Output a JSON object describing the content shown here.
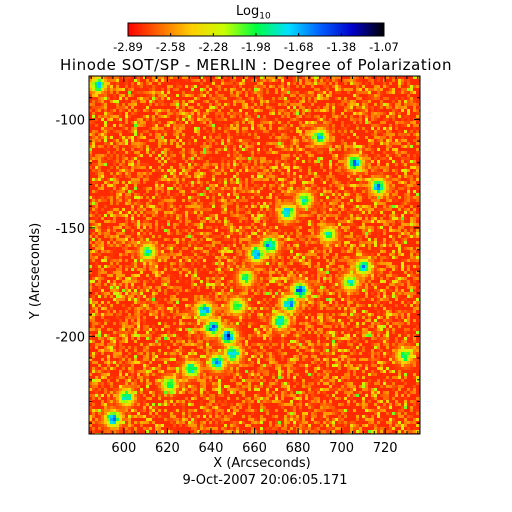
{
  "chart_data": {
    "type": "heatmap",
    "title": "Hinode SOT/SP - MERLIN : Degree of Polarization",
    "xlabel": "X (Arcseconds)",
    "ylabel": "Y (Arcseconds)",
    "timestamp": "9-Oct-2007 20:06:05.171",
    "xlim": [
      584,
      736
    ],
    "ylim": [
      -245,
      -80
    ],
    "x_ticks": [
      600,
      620,
      640,
      660,
      680,
      700,
      720
    ],
    "x_tick_labels": [
      "600",
      "620",
      "640",
      "660",
      "680",
      "700",
      "720"
    ],
    "y_ticks": [
      -100,
      -150,
      -200
    ],
    "y_tick_labels": [
      "-100",
      "-150",
      "-200"
    ],
    "colorbar": {
      "label": "Log10",
      "label_base": "Log",
      "label_sub": "10",
      "range": [
        -2.89,
        -1.07
      ],
      "tick_labels": [
        "-2.89",
        "-2.58",
        "-2.28",
        "-1.98",
        "-1.68",
        "-1.38",
        "-1.07"
      ],
      "colors": [
        "#ff0000",
        "#ff6a00",
        "#ffd000",
        "#c8ff00",
        "#00ff40",
        "#00e0ff",
        "#0060ff",
        "#0000cc",
        "#000000"
      ]
    },
    "background_level": -2.8,
    "features": [
      {
        "x": 637,
        "y": -188,
        "peak": -1.45
      },
      {
        "x": 641,
        "y": -196,
        "peak": -1.4
      },
      {
        "x": 648,
        "y": -200,
        "peak": -1.35
      },
      {
        "x": 650,
        "y": -208,
        "peak": -1.45
      },
      {
        "x": 643,
        "y": -212,
        "peak": -1.5
      },
      {
        "x": 631,
        "y": -215,
        "peak": -1.65
      },
      {
        "x": 652,
        "y": -186,
        "peak": -1.75
      },
      {
        "x": 676,
        "y": -185,
        "peak": -1.45
      },
      {
        "x": 681,
        "y": -179,
        "peak": -1.4
      },
      {
        "x": 672,
        "y": -193,
        "peak": -1.55
      },
      {
        "x": 667,
        "y": -158,
        "peak": -1.45
      },
      {
        "x": 661,
        "y": -162,
        "peak": -1.5
      },
      {
        "x": 675,
        "y": -143,
        "peak": -1.55
      },
      {
        "x": 683,
        "y": -137,
        "peak": -1.75
      },
      {
        "x": 690,
        "y": -108,
        "peak": -1.7
      },
      {
        "x": 706,
        "y": -120,
        "peak": -1.5
      },
      {
        "x": 717,
        "y": -131,
        "peak": -1.5
      },
      {
        "x": 710,
        "y": -168,
        "peak": -1.65
      },
      {
        "x": 704,
        "y": -175,
        "peak": -1.75
      },
      {
        "x": 595,
        "y": -238,
        "peak": -1.45
      },
      {
        "x": 601,
        "y": -228,
        "peak": -1.65
      },
      {
        "x": 621,
        "y": -222,
        "peak": -1.85
      },
      {
        "x": 611,
        "y": -161,
        "peak": -1.8
      },
      {
        "x": 694,
        "y": -153,
        "peak": -1.85
      },
      {
        "x": 588,
        "y": -84,
        "peak": -1.65
      },
      {
        "x": 729,
        "y": -209,
        "peak": -1.8
      },
      {
        "x": 656,
        "y": -173,
        "peak": -1.85
      }
    ]
  }
}
